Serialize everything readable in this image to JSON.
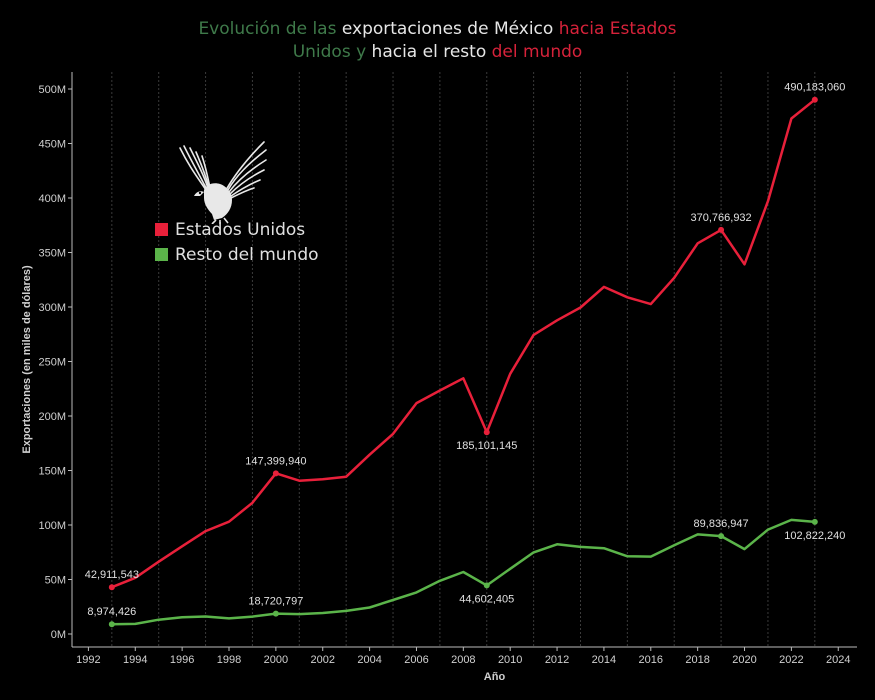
{
  "title": {
    "line1": [
      {
        "text": "Evolución de las ",
        "color": "green"
      },
      {
        "text": "exportaciones de México ",
        "color": "white"
      },
      {
        "text": "hacia Estados",
        "color": "red"
      }
    ],
    "line2": [
      {
        "text": "Unidos y ",
        "color": "green"
      },
      {
        "text": "hacia el resto ",
        "color": "white"
      },
      {
        "text": "del mundo",
        "color": "red"
      }
    ]
  },
  "colors": {
    "green": "#3f7a4a",
    "white": "#e6e6e6",
    "red": "#d6223a",
    "us_series": "#e8203a",
    "rest_series": "#5bb44a"
  },
  "legend": {
    "us": "Estados Unidos",
    "rest": "Resto del mundo"
  },
  "logo": "eagle-icon",
  "chart_data": {
    "type": "line",
    "xlabel": "Año",
    "ylabel": "Exportaciones (en miles de dólares)",
    "xlim": [
      1991.3,
      2024.8
    ],
    "ylim": [
      0,
      525000000
    ],
    "x_ticks": [
      1992,
      1994,
      1996,
      1998,
      2000,
      2002,
      2004,
      2006,
      2008,
      2010,
      2012,
      2014,
      2016,
      2018,
      2020,
      2022,
      2024
    ],
    "y_ticks": [
      {
        "value": 0,
        "label": "0M"
      },
      {
        "value": 50000000,
        "label": "50M"
      },
      {
        "value": 100000000,
        "label": "100M"
      },
      {
        "value": 150000000,
        "label": "150M"
      },
      {
        "value": 200000000,
        "label": "200M"
      },
      {
        "value": 250000000,
        "label": "250M"
      },
      {
        "value": 300000000,
        "label": "300M"
      },
      {
        "value": 350000000,
        "label": "350M"
      },
      {
        "value": 400000000,
        "label": "400M"
      },
      {
        "value": 450000000,
        "label": "450M"
      },
      {
        "value": 500000000,
        "label": "500M"
      }
    ],
    "grid": "vertical",
    "legend_position": "top-left",
    "series": [
      {
        "name": "Estados Unidos",
        "x": [
          1993,
          1994,
          1995,
          1996,
          1997,
          1998,
          1999,
          2000,
          2001,
          2002,
          2003,
          2004,
          2005,
          2006,
          2007,
          2008,
          2009,
          2010,
          2011,
          2012,
          2013,
          2014,
          2015,
          2016,
          2017,
          2018,
          2019,
          2020,
          2021,
          2022,
          2023
        ],
        "values": [
          42911543,
          51600000,
          66300000,
          80500000,
          94400000,
          103000000,
          120400000,
          147399940,
          140600000,
          141900000,
          144300000,
          164500000,
          183600000,
          211800000,
          223400000,
          234600000,
          185101145,
          238700000,
          274400000,
          287800000,
          299500000,
          318400000,
          308900000,
          302700000,
          326800000,
          358400000,
          370766932,
          339200000,
          397200000,
          472900000,
          490183060
        ],
        "labels": [
          {
            "x": 1993,
            "text": "42,911,543",
            "pos": "above"
          },
          {
            "x": 2000,
            "text": "147,399,940",
            "pos": "above"
          },
          {
            "x": 2009,
            "text": "185,101,145",
            "pos": "below"
          },
          {
            "x": 2019,
            "text": "370,766,932",
            "pos": "above"
          },
          {
            "x": 2023,
            "text": "490,183,060",
            "pos": "above"
          }
        ]
      },
      {
        "name": "Resto del mundo",
        "x": [
          1993,
          1994,
          1995,
          1996,
          1997,
          1998,
          1999,
          2000,
          2001,
          2002,
          2003,
          2004,
          2005,
          2006,
          2007,
          2008,
          2009,
          2010,
          2011,
          2012,
          2013,
          2014,
          2015,
          2016,
          2017,
          2018,
          2019,
          2020,
          2021,
          2022,
          2023
        ],
        "values": [
          8974426,
          9300000,
          13100000,
          15300000,
          16100000,
          14300000,
          16000000,
          18720797,
          18300000,
          19300000,
          21200000,
          24300000,
          31200000,
          38200000,
          48800000,
          56900000,
          44602405,
          59800000,
          74900000,
          82300000,
          79900000,
          78700000,
          71300000,
          71000000,
          81400000,
          91400000,
          89836947,
          77900000,
          95800000,
          104700000,
          102822240
        ],
        "labels": [
          {
            "x": 1993,
            "text": "8,974,426",
            "pos": "above"
          },
          {
            "x": 2000,
            "text": "18,720,797",
            "pos": "above"
          },
          {
            "x": 2009,
            "text": "44,602,405",
            "pos": "below"
          },
          {
            "x": 2019,
            "text": "89,836,947",
            "pos": "above"
          },
          {
            "x": 2023,
            "text": "102,822,240",
            "pos": "below"
          }
        ]
      }
    ]
  }
}
